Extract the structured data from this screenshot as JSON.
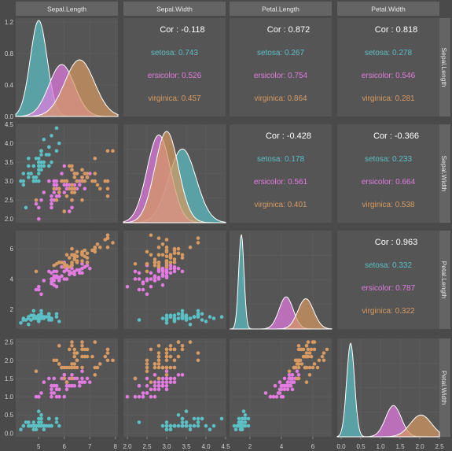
{
  "chart_data": {
    "type": "scatter",
    "variables": [
      "Sepal.Length",
      "Sepal.Width",
      "Petal.Length",
      "Petal.Width"
    ],
    "species": [
      {
        "name": "setosa",
        "color": "#5bbfc4"
      },
      {
        "name": "versicolor",
        "color": "#e27ce0"
      },
      {
        "name": "virginica",
        "color": "#d69a62"
      }
    ],
    "correlations": [
      {
        "row": 0,
        "col": 1,
        "overall": "Cor : -0.118",
        "groups": [
          "setosa: 0.743",
          "ersicolor: 0.526",
          "virginica: 0.457"
        ]
      },
      {
        "row": 0,
        "col": 2,
        "overall": "Cor : 0.872",
        "groups": [
          "setosa: 0.267",
          "ersicolor: 0.754",
          "virginica: 0.864"
        ]
      },
      {
        "row": 0,
        "col": 3,
        "overall": "Cor : 0.818",
        "groups": [
          "setosa: 0.278",
          "ersicolor: 0.546",
          "virginica: 0.281"
        ]
      },
      {
        "row": 1,
        "col": 2,
        "overall": "Cor : -0.428",
        "groups": [
          "setosa: 0.178",
          "ersicolor: 0.561",
          "virginica: 0.401"
        ]
      },
      {
        "row": 1,
        "col": 3,
        "overall": "Cor : -0.366",
        "groups": [
          "setosa: 0.233",
          "ersicolor: 0.664",
          "virginica: 0.538"
        ]
      },
      {
        "row": 2,
        "col": 3,
        "overall": "Cor : 0.963",
        "groups": [
          "setosa: 0.332",
          "ersicolor: 0.787",
          "virginica: 0.322"
        ]
      }
    ],
    "x_axes": [
      {
        "range": [
          4.1,
          8.1
        ],
        "ticks": [
          5,
          6,
          7,
          8
        ],
        "tick_labels": [
          "5",
          "6",
          "7",
          "8"
        ]
      },
      {
        "range": [
          1.9,
          4.5
        ],
        "ticks": [
          2.0,
          2.5,
          3.0,
          3.5,
          4.0,
          4.5
        ],
        "tick_labels": [
          "2.0",
          "2.5",
          "3.0",
          "3.5",
          "4.0",
          "4.5"
        ]
      },
      {
        "range": [
          0.7,
          7.2
        ],
        "ticks": [
          2,
          4,
          6
        ],
        "tick_labels": [
          "2",
          "4",
          "6"
        ]
      },
      {
        "range": [
          -0.1,
          2.5
        ],
        "ticks": [
          0.0,
          0.5,
          1.0,
          1.5,
          2.0,
          2.5
        ],
        "tick_labels": [
          "0.0",
          "0.5",
          "1.0",
          "1.5",
          "2.0",
          "2.5"
        ]
      }
    ],
    "y_axes": [
      {
        "range": [
          0,
          1.25
        ],
        "ticks": [
          0.0,
          0.4,
          0.8,
          1.2
        ],
        "tick_labels": [
          "0.0",
          "0.4",
          "0.8",
          "1.2"
        ]
      },
      {
        "range": [
          1.9,
          4.5
        ],
        "ticks": [
          2.0,
          2.5,
          3.0,
          3.5,
          4.0,
          4.5
        ],
        "tick_labels": [
          "2.0",
          "2.5",
          "3.0",
          "3.5",
          "4.0",
          "4.5"
        ]
      },
      {
        "range": [
          0.7,
          7.2
        ],
        "ticks": [
          2,
          4,
          6
        ],
        "tick_labels": [
          "2",
          "4",
          "6"
        ]
      },
      {
        "range": [
          -0.1,
          2.6
        ],
        "ticks": [
          0.0,
          0.5,
          1.0,
          1.5,
          2.0,
          2.5
        ],
        "tick_labels": [
          "0.0",
          "0.5",
          "1.0",
          "1.5",
          "2.0",
          "2.5"
        ]
      }
    ],
    "density_peaks": [
      {
        "var": 0,
        "series": [
          {
            "species": "setosa",
            "mean": 5.0,
            "sd": 0.33,
            "peak": 1.22
          },
          {
            "species": "versicolor",
            "mean": 5.9,
            "sd": 0.5,
            "peak": 0.66
          },
          {
            "species": "virginica",
            "mean": 6.6,
            "sd": 0.58,
            "peak": 0.72
          }
        ]
      },
      {
        "var": 1,
        "series": [
          {
            "species": "setosa",
            "mean": 3.4,
            "sd": 0.35,
            "peak": 1.05
          },
          {
            "species": "versicolor",
            "mean": 2.8,
            "sd": 0.3,
            "peak": 1.25
          },
          {
            "species": "virginica",
            "mean": 3.0,
            "sd": 0.3,
            "peak": 1.3
          }
        ]
      },
      {
        "var": 2,
        "series": [
          {
            "species": "setosa",
            "mean": 1.45,
            "sd": 0.17,
            "peak": 2.5
          },
          {
            "species": "versicolor",
            "mean": 4.3,
            "sd": 0.45,
            "peak": 0.85
          },
          {
            "species": "virginica",
            "mean": 5.55,
            "sd": 0.5,
            "peak": 0.8
          }
        ]
      },
      {
        "var": 3,
        "series": [
          {
            "species": "setosa",
            "mean": 0.24,
            "sd": 0.1,
            "peak": 6.0
          },
          {
            "species": "versicolor",
            "mean": 1.33,
            "sd": 0.2,
            "peak": 2.0
          },
          {
            "species": "virginica",
            "mean": 2.03,
            "sd": 0.27,
            "peak": 1.4
          }
        ]
      }
    ],
    "density_ymax": [
      1.25,
      1.4,
      2.6,
      6.3
    ],
    "points": {
      "setosa": {
        "Sepal.Length": [
          5.1,
          4.9,
          4.7,
          4.6,
          5.0,
          5.4,
          4.6,
          5.0,
          4.4,
          4.9,
          5.4,
          4.8,
          4.8,
          4.3,
          5.8,
          5.7,
          5.4,
          5.1,
          5.7,
          5.1,
          5.4,
          5.1,
          4.6,
          5.1,
          4.8,
          5.0,
          5.0,
          5.2,
          5.2,
          4.7,
          4.8,
          5.4,
          5.2,
          5.5,
          4.9,
          5.0,
          5.5,
          4.9,
          4.4,
          5.1,
          5.0,
          4.5,
          4.4,
          5.0,
          5.1,
          4.8,
          5.1,
          4.6,
          5.3,
          5.0
        ],
        "Sepal.Width": [
          3.5,
          3.0,
          3.2,
          3.1,
          3.6,
          3.9,
          3.4,
          3.4,
          2.9,
          3.1,
          3.7,
          3.4,
          3.0,
          3.0,
          4.0,
          4.4,
          3.9,
          3.5,
          3.8,
          3.8,
          3.4,
          3.7,
          3.6,
          3.3,
          3.4,
          3.0,
          3.4,
          3.5,
          3.4,
          3.2,
          3.1,
          3.4,
          4.1,
          4.2,
          3.1,
          3.2,
          3.5,
          3.6,
          3.0,
          3.4,
          3.5,
          2.3,
          3.2,
          3.5,
          3.8,
          3.0,
          3.8,
          3.2,
          3.7,
          3.3
        ],
        "Petal.Length": [
          1.4,
          1.4,
          1.3,
          1.5,
          1.4,
          1.7,
          1.4,
          1.5,
          1.4,
          1.5,
          1.5,
          1.6,
          1.4,
          1.1,
          1.2,
          1.5,
          1.3,
          1.4,
          1.7,
          1.5,
          1.7,
          1.5,
          1.0,
          1.7,
          1.9,
          1.6,
          1.6,
          1.5,
          1.4,
          1.6,
          1.6,
          1.5,
          1.5,
          1.4,
          1.5,
          1.2,
          1.3,
          1.4,
          1.3,
          1.5,
          1.3,
          1.3,
          1.3,
          1.6,
          1.9,
          1.4,
          1.6,
          1.4,
          1.5,
          1.4
        ],
        "Petal.Width": [
          0.2,
          0.2,
          0.2,
          0.2,
          0.2,
          0.4,
          0.3,
          0.2,
          0.2,
          0.1,
          0.2,
          0.2,
          0.1,
          0.1,
          0.2,
          0.4,
          0.4,
          0.3,
          0.3,
          0.3,
          0.2,
          0.4,
          0.2,
          0.5,
          0.2,
          0.2,
          0.4,
          0.2,
          0.2,
          0.2,
          0.2,
          0.4,
          0.1,
          0.2,
          0.2,
          0.2,
          0.2,
          0.1,
          0.2,
          0.2,
          0.3,
          0.3,
          0.2,
          0.6,
          0.4,
          0.3,
          0.2,
          0.2,
          0.2,
          0.2
        ]
      },
      "versicolor": {
        "Sepal.Length": [
          7.0,
          6.4,
          6.9,
          5.5,
          6.5,
          5.7,
          6.3,
          4.9,
          6.6,
          5.2,
          5.0,
          5.9,
          6.0,
          6.1,
          5.6,
          6.7,
          5.6,
          5.8,
          6.2,
          5.6,
          5.9,
          6.1,
          6.3,
          6.1,
          6.4,
          6.6,
          6.8,
          6.7,
          6.0,
          5.7,
          5.5,
          5.5,
          5.8,
          6.0,
          5.4,
          6.0,
          6.7,
          6.3,
          5.6,
          5.5,
          5.5,
          6.1,
          5.8,
          5.0,
          5.6,
          5.7,
          5.7,
          6.2,
          5.1,
          5.7
        ],
        "Sepal.Width": [
          3.2,
          3.2,
          3.1,
          2.3,
          2.8,
          2.8,
          3.3,
          2.4,
          2.9,
          2.7,
          2.0,
          3.0,
          2.2,
          2.9,
          2.9,
          3.1,
          3.0,
          2.7,
          2.2,
          2.5,
          3.2,
          2.8,
          2.5,
          2.8,
          2.9,
          3.0,
          2.8,
          3.0,
          2.9,
          2.6,
          2.4,
          2.4,
          2.7,
          2.7,
          3.0,
          3.4,
          3.1,
          2.3,
          3.0,
          2.5,
          2.6,
          3.0,
          2.6,
          2.3,
          2.7,
          3.0,
          2.9,
          2.9,
          2.5,
          2.8
        ],
        "Petal.Length": [
          4.7,
          4.5,
          4.9,
          4.0,
          4.6,
          4.5,
          4.7,
          3.3,
          4.6,
          3.9,
          3.5,
          4.2,
          4.0,
          4.7,
          3.6,
          4.4,
          4.5,
          4.1,
          4.5,
          3.9,
          4.8,
          4.0,
          4.9,
          4.7,
          4.3,
          4.4,
          4.8,
          5.0,
          4.5,
          3.5,
          3.8,
          3.7,
          3.9,
          5.1,
          4.5,
          4.5,
          4.7,
          4.4,
          4.1,
          4.0,
          4.4,
          4.6,
          4.0,
          3.3,
          4.2,
          4.2,
          4.2,
          4.3,
          3.0,
          4.1
        ],
        "Petal.Width": [
          1.4,
          1.5,
          1.5,
          1.3,
          1.5,
          1.3,
          1.6,
          1.0,
          1.3,
          1.4,
          1.0,
          1.5,
          1.0,
          1.4,
          1.3,
          1.4,
          1.5,
          1.0,
          1.5,
          1.1,
          1.8,
          1.3,
          1.5,
          1.2,
          1.3,
          1.4,
          1.4,
          1.7,
          1.5,
          1.0,
          1.1,
          1.0,
          1.2,
          1.6,
          1.5,
          1.6,
          1.5,
          1.3,
          1.3,
          1.3,
          1.2,
          1.4,
          1.2,
          1.0,
          1.3,
          1.2,
          1.3,
          1.3,
          1.1,
          1.3
        ]
      },
      "virginica": {
        "Sepal.Length": [
          6.3,
          5.8,
          7.1,
          6.3,
          6.5,
          7.6,
          4.9,
          7.3,
          6.7,
          7.2,
          6.5,
          6.4,
          6.8,
          5.7,
          5.8,
          6.4,
          6.5,
          7.7,
          7.7,
          6.0,
          6.9,
          5.6,
          7.7,
          6.3,
          6.7,
          7.2,
          6.2,
          6.1,
          6.4,
          7.2,
          7.4,
          7.9,
          6.4,
          6.3,
          6.1,
          7.7,
          6.3,
          6.4,
          6.0,
          6.9,
          6.7,
          6.9,
          5.8,
          6.8,
          6.7,
          6.7,
          6.3,
          6.5,
          6.2,
          5.9
        ],
        "Sepal.Width": [
          3.3,
          2.7,
          3.0,
          2.9,
          3.0,
          3.0,
          2.5,
          2.9,
          2.5,
          3.6,
          3.2,
          2.7,
          3.0,
          2.5,
          2.8,
          3.2,
          3.0,
          3.8,
          2.6,
          2.2,
          3.2,
          2.8,
          2.8,
          2.7,
          3.3,
          3.2,
          2.8,
          3.0,
          2.8,
          3.0,
          2.8,
          3.8,
          2.8,
          2.8,
          2.6,
          3.0,
          3.4,
          3.1,
          3.0,
          3.1,
          3.1,
          3.1,
          2.7,
          3.2,
          3.3,
          3.0,
          2.5,
          3.0,
          3.4,
          3.0
        ],
        "Petal.Length": [
          6.0,
          5.1,
          5.9,
          5.6,
          5.8,
          6.6,
          4.5,
          6.3,
          5.8,
          6.1,
          5.1,
          5.3,
          5.5,
          5.0,
          5.1,
          5.3,
          5.5,
          6.7,
          6.9,
          5.0,
          5.7,
          4.9,
          6.7,
          4.9,
          5.7,
          6.0,
          4.8,
          4.9,
          5.6,
          5.8,
          6.1,
          6.4,
          5.6,
          5.1,
          5.6,
          6.1,
          5.6,
          5.5,
          4.8,
          5.4,
          5.6,
          5.1,
          5.1,
          5.9,
          5.7,
          5.2,
          5.0,
          5.2,
          5.4,
          5.1
        ],
        "Petal.Width": [
          2.5,
          1.9,
          2.1,
          1.8,
          2.2,
          2.1,
          1.7,
          1.8,
          1.8,
          2.5,
          2.0,
          1.9,
          2.1,
          2.0,
          2.4,
          2.3,
          1.8,
          2.2,
          2.3,
          1.5,
          2.3,
          2.0,
          2.0,
          1.8,
          2.1,
          1.8,
          1.8,
          1.8,
          2.1,
          1.6,
          1.9,
          2.0,
          2.2,
          1.5,
          1.4,
          2.3,
          2.4,
          1.8,
          1.8,
          2.1,
          2.4,
          2.3,
          1.9,
          2.3,
          2.5,
          2.3,
          1.9,
          2.0,
          2.3,
          1.8
        ]
      }
    }
  }
}
